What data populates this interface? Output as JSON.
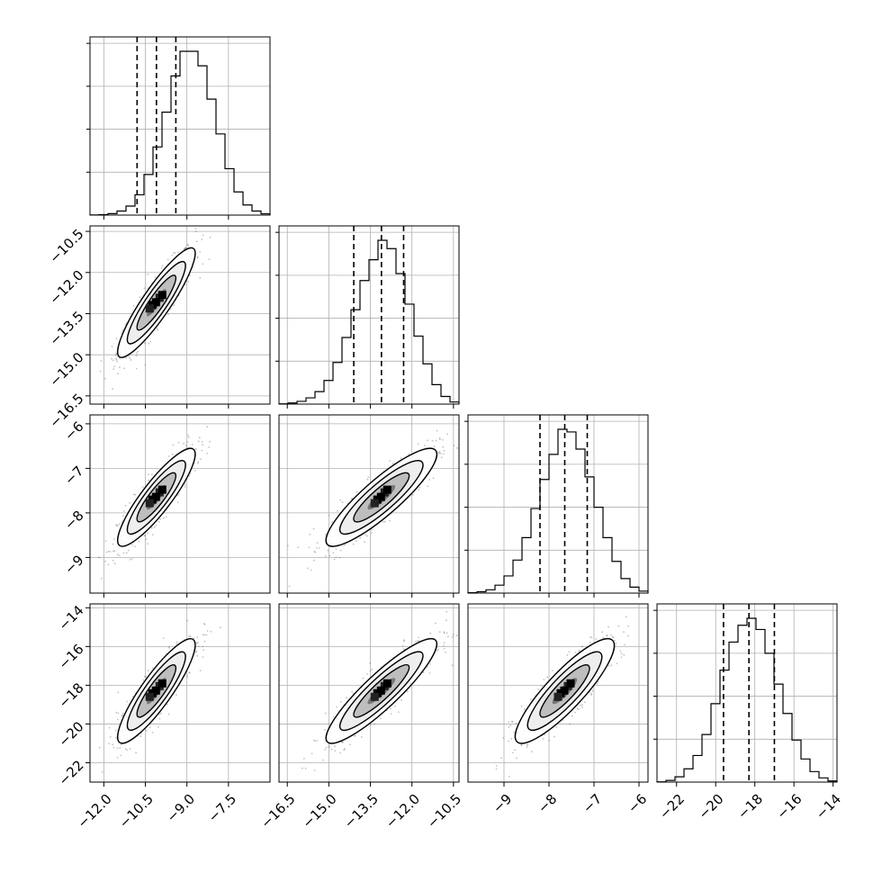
{
  "chart_data": {
    "type": "scatter",
    "title": "",
    "variables": [
      {
        "mean": -10.1,
        "sd": 0.7,
        "ticks": [
          -12.0,
          -10.5,
          -9.0,
          -7.5
        ],
        "tick_labels": [
          "−12.0",
          "−10.5",
          "−9.0",
          "−7.5"
        ],
        "range": [
          -12.5,
          -6.0
        ],
        "quantiles": [
          -10.8,
          -10.1,
          -9.4
        ]
      },
      {
        "mean": -13.1,
        "sd": 1.0,
        "ticks": [
          -16.5,
          -15.0,
          -13.5,
          -12.0,
          -10.5
        ],
        "tick_labels": [
          "−16.5",
          "−15.0",
          "−13.5",
          "−12.0",
          "−10.5"
        ],
        "range": [
          -16.8,
          -10.3
        ],
        "quantiles": [
          -14.1,
          -13.1,
          -12.3
        ]
      },
      {
        "mean": -7.65,
        "sd": 0.55,
        "ticks": [
          -9,
          -8,
          -7,
          -6
        ],
        "tick_labels": [
          "−9",
          "−8",
          "−7",
          "−6"
        ],
        "range": [
          -9.8,
          -5.8
        ],
        "quantiles": [
          -8.2,
          -7.65,
          -7.15
        ]
      },
      {
        "mean": -18.3,
        "sd": 1.35,
        "ticks": [
          -22,
          -20,
          -18,
          -16,
          -14
        ],
        "tick_labels": [
          "−22",
          "−20",
          "−18",
          "−16",
          "−14"
        ],
        "range": [
          -23.0,
          -13.8
        ],
        "quantiles": [
          -19.6,
          -18.3,
          -17.0
        ]
      }
    ],
    "histograms": [
      {
        "bin_range": [
          -12.5,
          -6.0
        ],
        "counts": [
          1,
          3,
          10,
          28,
          62,
          140,
          280,
          470,
          710,
          960,
          1130,
          1130,
          1030,
          800,
          560,
          320,
          160,
          70,
          28,
          9
        ]
      },
      {
        "bin_range": [
          -16.8,
          -10.3
        ],
        "counts": [
          2,
          8,
          20,
          45,
          90,
          170,
          300,
          480,
          680,
          890,
          1040,
          1180,
          1120,
          940,
          720,
          490,
          290,
          140,
          55,
          15
        ]
      },
      {
        "bin_range": [
          -9.8,
          -5.8
        ],
        "counts": [
          3,
          10,
          25,
          60,
          130,
          250,
          420,
          640,
          860,
          1050,
          1240,
          1220,
          1090,
          880,
          650,
          420,
          240,
          110,
          45,
          15
        ]
      },
      {
        "bin_range": [
          -23.0,
          -13.8
        ],
        "counts": [
          2,
          12,
          38,
          95,
          190,
          340,
          560,
          800,
          1000,
          1120,
          1170,
          1090,
          920,
          700,
          490,
          300,
          165,
          75,
          30,
          8
        ]
      }
    ],
    "pairs": [
      {
        "x": 0,
        "y": 1,
        "correlation": 0.9
      },
      {
        "x": 0,
        "y": 2,
        "correlation": 0.88
      },
      {
        "x": 1,
        "y": 2,
        "correlation": 0.88
      },
      {
        "x": 0,
        "y": 3,
        "correlation": 0.88
      },
      {
        "x": 1,
        "y": 3,
        "correlation": 0.9
      },
      {
        "x": 2,
        "y": 3,
        "correlation": 0.87
      }
    ],
    "contour_levels_sigma": [
      0.5,
      1.0,
      1.5,
      2.0
    ],
    "grid": true,
    "legend": "none"
  }
}
